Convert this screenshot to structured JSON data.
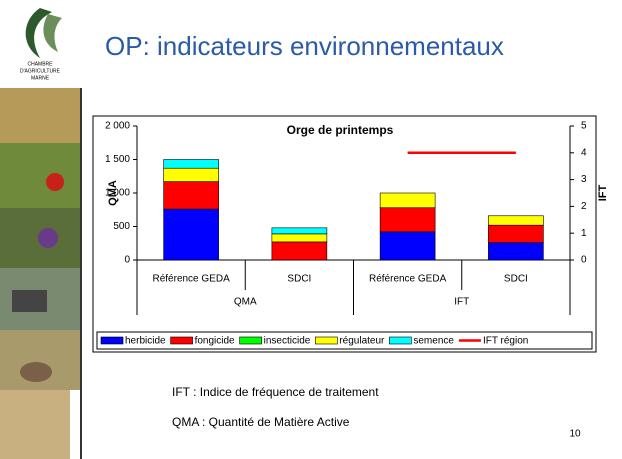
{
  "logo": [
    "CHAMBRE",
    "D'AGRICULTURE",
    "MARNE"
  ],
  "title": "OP: indicateurs environnementaux",
  "notes": [
    "IFT : Indice de fréquence de traitement",
    "QMA : Quantité de Matière Active"
  ],
  "page_number": "10",
  "chart_data": {
    "type": "bar",
    "stacked": true,
    "title": "Orge de printemps",
    "ylabel": "QMA",
    "y2label": "IFT",
    "groups": [
      {
        "name": "QMA",
        "axis": "y",
        "categories": [
          "Référence GEDA",
          "SDCI"
        ]
      },
      {
        "name": "IFT",
        "axis": "y2",
        "categories": [
          "Référence GEDA",
          "SDCI"
        ]
      }
    ],
    "ylim": [
      0,
      2000
    ],
    "yticks": [
      0,
      500,
      {
        "value": 1000,
        "label": "1 000"
      },
      {
        "value": 1500,
        "label": "1 500"
      },
      {
        "value": 2000,
        "label": "2 000"
      }
    ],
    "y2lim": [
      0,
      5
    ],
    "y2ticks": [
      0,
      1,
      2,
      3,
      4,
      5
    ],
    "series": [
      {
        "name": "herbicide",
        "color": "#0000ff",
        "values": [
          760,
          0,
          1.05,
          0.65
        ]
      },
      {
        "name": "fongicide",
        "color": "#ff0000",
        "values": [
          410,
          270,
          0.9,
          0.65
        ]
      },
      {
        "name": "insecticide",
        "color": "#00ff00",
        "values": [
          0,
          0,
          0,
          0
        ]
      },
      {
        "name": "régulateur",
        "color": "#ffff00",
        "values": [
          200,
          120,
          0.55,
          0.35
        ]
      },
      {
        "name": "semence",
        "color": "#00ffff",
        "values": [
          130,
          90,
          0,
          0
        ]
      },
      {
        "name": "IFT région",
        "type": "line",
        "axis": "y2",
        "color": "#ff0000",
        "values": [
          null,
          null,
          4,
          4
        ]
      }
    ]
  }
}
